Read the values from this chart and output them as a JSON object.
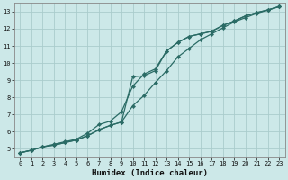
{
  "title": "",
  "xlabel": "Humidex (Indice chaleur)",
  "ylabel": "",
  "bg_color": "#cce8e8",
  "grid_color": "#aacccc",
  "line_color": "#2a6b65",
  "xlim": [
    -0.5,
    23.5
  ],
  "ylim": [
    4.5,
    13.5
  ],
  "xticks": [
    0,
    1,
    2,
    3,
    4,
    5,
    6,
    7,
    8,
    9,
    10,
    11,
    12,
    13,
    14,
    15,
    16,
    17,
    18,
    19,
    20,
    21,
    22,
    23
  ],
  "yticks": [
    5,
    6,
    7,
    8,
    9,
    10,
    11,
    12,
    13
  ],
  "series1_x": [
    0,
    1,
    2,
    3,
    4,
    5,
    6,
    7,
    8,
    9,
    10,
    11,
    12,
    13,
    14,
    15,
    16,
    17,
    18,
    19,
    20,
    21,
    22,
    23
  ],
  "series1_y": [
    4.75,
    4.9,
    5.1,
    5.2,
    5.35,
    5.5,
    5.75,
    6.1,
    6.35,
    6.55,
    7.5,
    8.1,
    8.85,
    9.55,
    10.35,
    10.85,
    11.35,
    11.7,
    12.05,
    12.4,
    12.65,
    12.9,
    13.1,
    13.3
  ],
  "series2_x": [
    0,
    1,
    2,
    3,
    4,
    5,
    6,
    7,
    8,
    9,
    10,
    11,
    12,
    13,
    14,
    15,
    16,
    17,
    18,
    19,
    20,
    21,
    22,
    23
  ],
  "series2_y": [
    4.75,
    4.9,
    5.1,
    5.25,
    5.4,
    5.55,
    5.9,
    6.4,
    6.6,
    7.15,
    8.65,
    9.35,
    9.65,
    10.7,
    11.2,
    11.55,
    11.7,
    11.85,
    12.2,
    12.45,
    12.75,
    12.95,
    13.1,
    13.3
  ],
  "series3_x": [
    0,
    1,
    2,
    3,
    4,
    5,
    6,
    7,
    8,
    9,
    10,
    11,
    12,
    13,
    14,
    15,
    16,
    17,
    18,
    19,
    20,
    21,
    22,
    23
  ],
  "series3_y": [
    4.75,
    4.9,
    5.1,
    5.2,
    5.35,
    5.5,
    5.75,
    6.1,
    6.35,
    6.55,
    9.2,
    9.25,
    9.55,
    10.7,
    11.2,
    11.55,
    11.7,
    11.85,
    12.2,
    12.45,
    12.75,
    12.95,
    13.1,
    13.3
  ]
}
